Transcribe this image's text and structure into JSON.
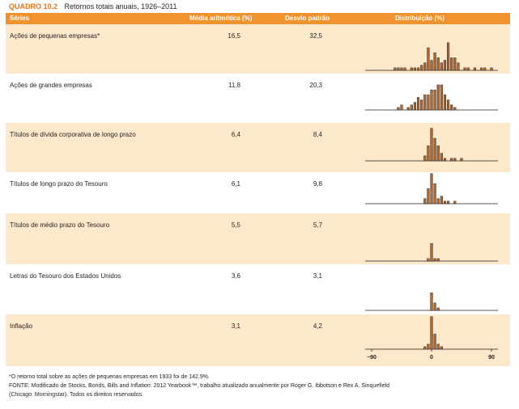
{
  "caption": {
    "label": "QUADRO 10.2",
    "title": "Retornos totais anuais, 1926–2011"
  },
  "headers": {
    "series": "Séries",
    "mean": "Média aritmética (%)",
    "sd": "Desvio padrão",
    "dist": "Distribuição (%)"
  },
  "chart_data": {
    "type": "bar",
    "xlim": [
      -90,
      90
    ],
    "x_ticks": [
      "−90",
      "0",
      "90"
    ],
    "series": [
      {
        "name": "Ações de pequenas empresas*",
        "mean": "16,5",
        "sd": "32,5",
        "bins": [
          [
            -55,
            1
          ],
          [
            -50,
            1
          ],
          [
            -45,
            1
          ],
          [
            -40,
            1
          ],
          [
            -30,
            1
          ],
          [
            -25,
            1
          ],
          [
            -20,
            1
          ],
          [
            -15,
            2
          ],
          [
            -10,
            3
          ],
          [
            -5,
            9
          ],
          [
            0,
            4
          ],
          [
            5,
            7
          ],
          [
            10,
            5
          ],
          [
            15,
            3
          ],
          [
            20,
            4
          ],
          [
            25,
            11
          ],
          [
            30,
            5
          ],
          [
            35,
            5
          ],
          [
            40,
            3
          ],
          [
            50,
            1
          ],
          [
            55,
            1
          ],
          [
            65,
            1
          ],
          [
            75,
            1
          ],
          [
            80,
            1
          ],
          [
            90,
            1
          ]
        ]
      },
      {
        "name": "Ações de grandes empresas",
        "mean": "11,8",
        "sd": "20,3",
        "bins": [
          [
            -50,
            1
          ],
          [
            -45,
            2
          ],
          [
            -35,
            1
          ],
          [
            -30,
            2
          ],
          [
            -25,
            3
          ],
          [
            -20,
            5
          ],
          [
            -15,
            4
          ],
          [
            -10,
            6
          ],
          [
            -5,
            6
          ],
          [
            0,
            8
          ],
          [
            5,
            8
          ],
          [
            10,
            10
          ],
          [
            15,
            10
          ],
          [
            20,
            6
          ],
          [
            25,
            4
          ],
          [
            30,
            2
          ],
          [
            35,
            1
          ]
        ]
      },
      {
        "name": "Títulos de dívida corporativa de longo prazo",
        "mean": "6,4",
        "sd": "8,4",
        "bins": [
          [
            -10,
            2
          ],
          [
            -5,
            6
          ],
          [
            0,
            13
          ],
          [
            5,
            9
          ],
          [
            10,
            6
          ],
          [
            15,
            3
          ],
          [
            20,
            1
          ],
          [
            30,
            1
          ],
          [
            35,
            1
          ],
          [
            45,
            1
          ]
        ]
      },
      {
        "name": "Títulos de longo prazo do Tesouro",
        "mean": "6,1",
        "sd": "9,8",
        "bins": [
          [
            -10,
            2
          ],
          [
            -5,
            6
          ],
          [
            0,
            12
          ],
          [
            5,
            8
          ],
          [
            10,
            2
          ],
          [
            15,
            3
          ],
          [
            20,
            1
          ],
          [
            25,
            1
          ],
          [
            35,
            1
          ]
        ]
      },
      {
        "name": "Títulos de médio prazo do Tesouro",
        "mean": "5,5",
        "sd": "5,7",
        "bins": [
          [
            -5,
            1
          ],
          [
            0,
            7
          ],
          [
            5,
            1
          ],
          [
            10,
            1
          ]
        ]
      },
      {
        "name": "Letras do Tesouro dos Estados Unidos",
        "mean": "3,6",
        "sd": "3,1",
        "bins": [
          [
            0,
            7
          ],
          [
            5,
            3
          ],
          [
            10,
            1
          ]
        ]
      },
      {
        "name": "Inflação",
        "mean": "3,1",
        "sd": "4,2",
        "bins": [
          [
            -10,
            1
          ],
          [
            -5,
            2
          ],
          [
            0,
            13
          ],
          [
            5,
            6
          ],
          [
            10,
            2
          ],
          [
            15,
            1
          ]
        ]
      }
    ]
  },
  "notes": {
    "line1": "*O retorno total sobre as ações de pequenas empresas em 1933 foi de 142,9%.",
    "line2": "FONTE: Modificado de Stocks, Bonds, Bills and Inflation: 2012 Yearbook™, trabalho atualizado anualmente por Roger G. Ibbotson e Rex A. Sinquefield",
    "line3": "(Chicago: Morningstar). Todos os direitos reservados."
  }
}
